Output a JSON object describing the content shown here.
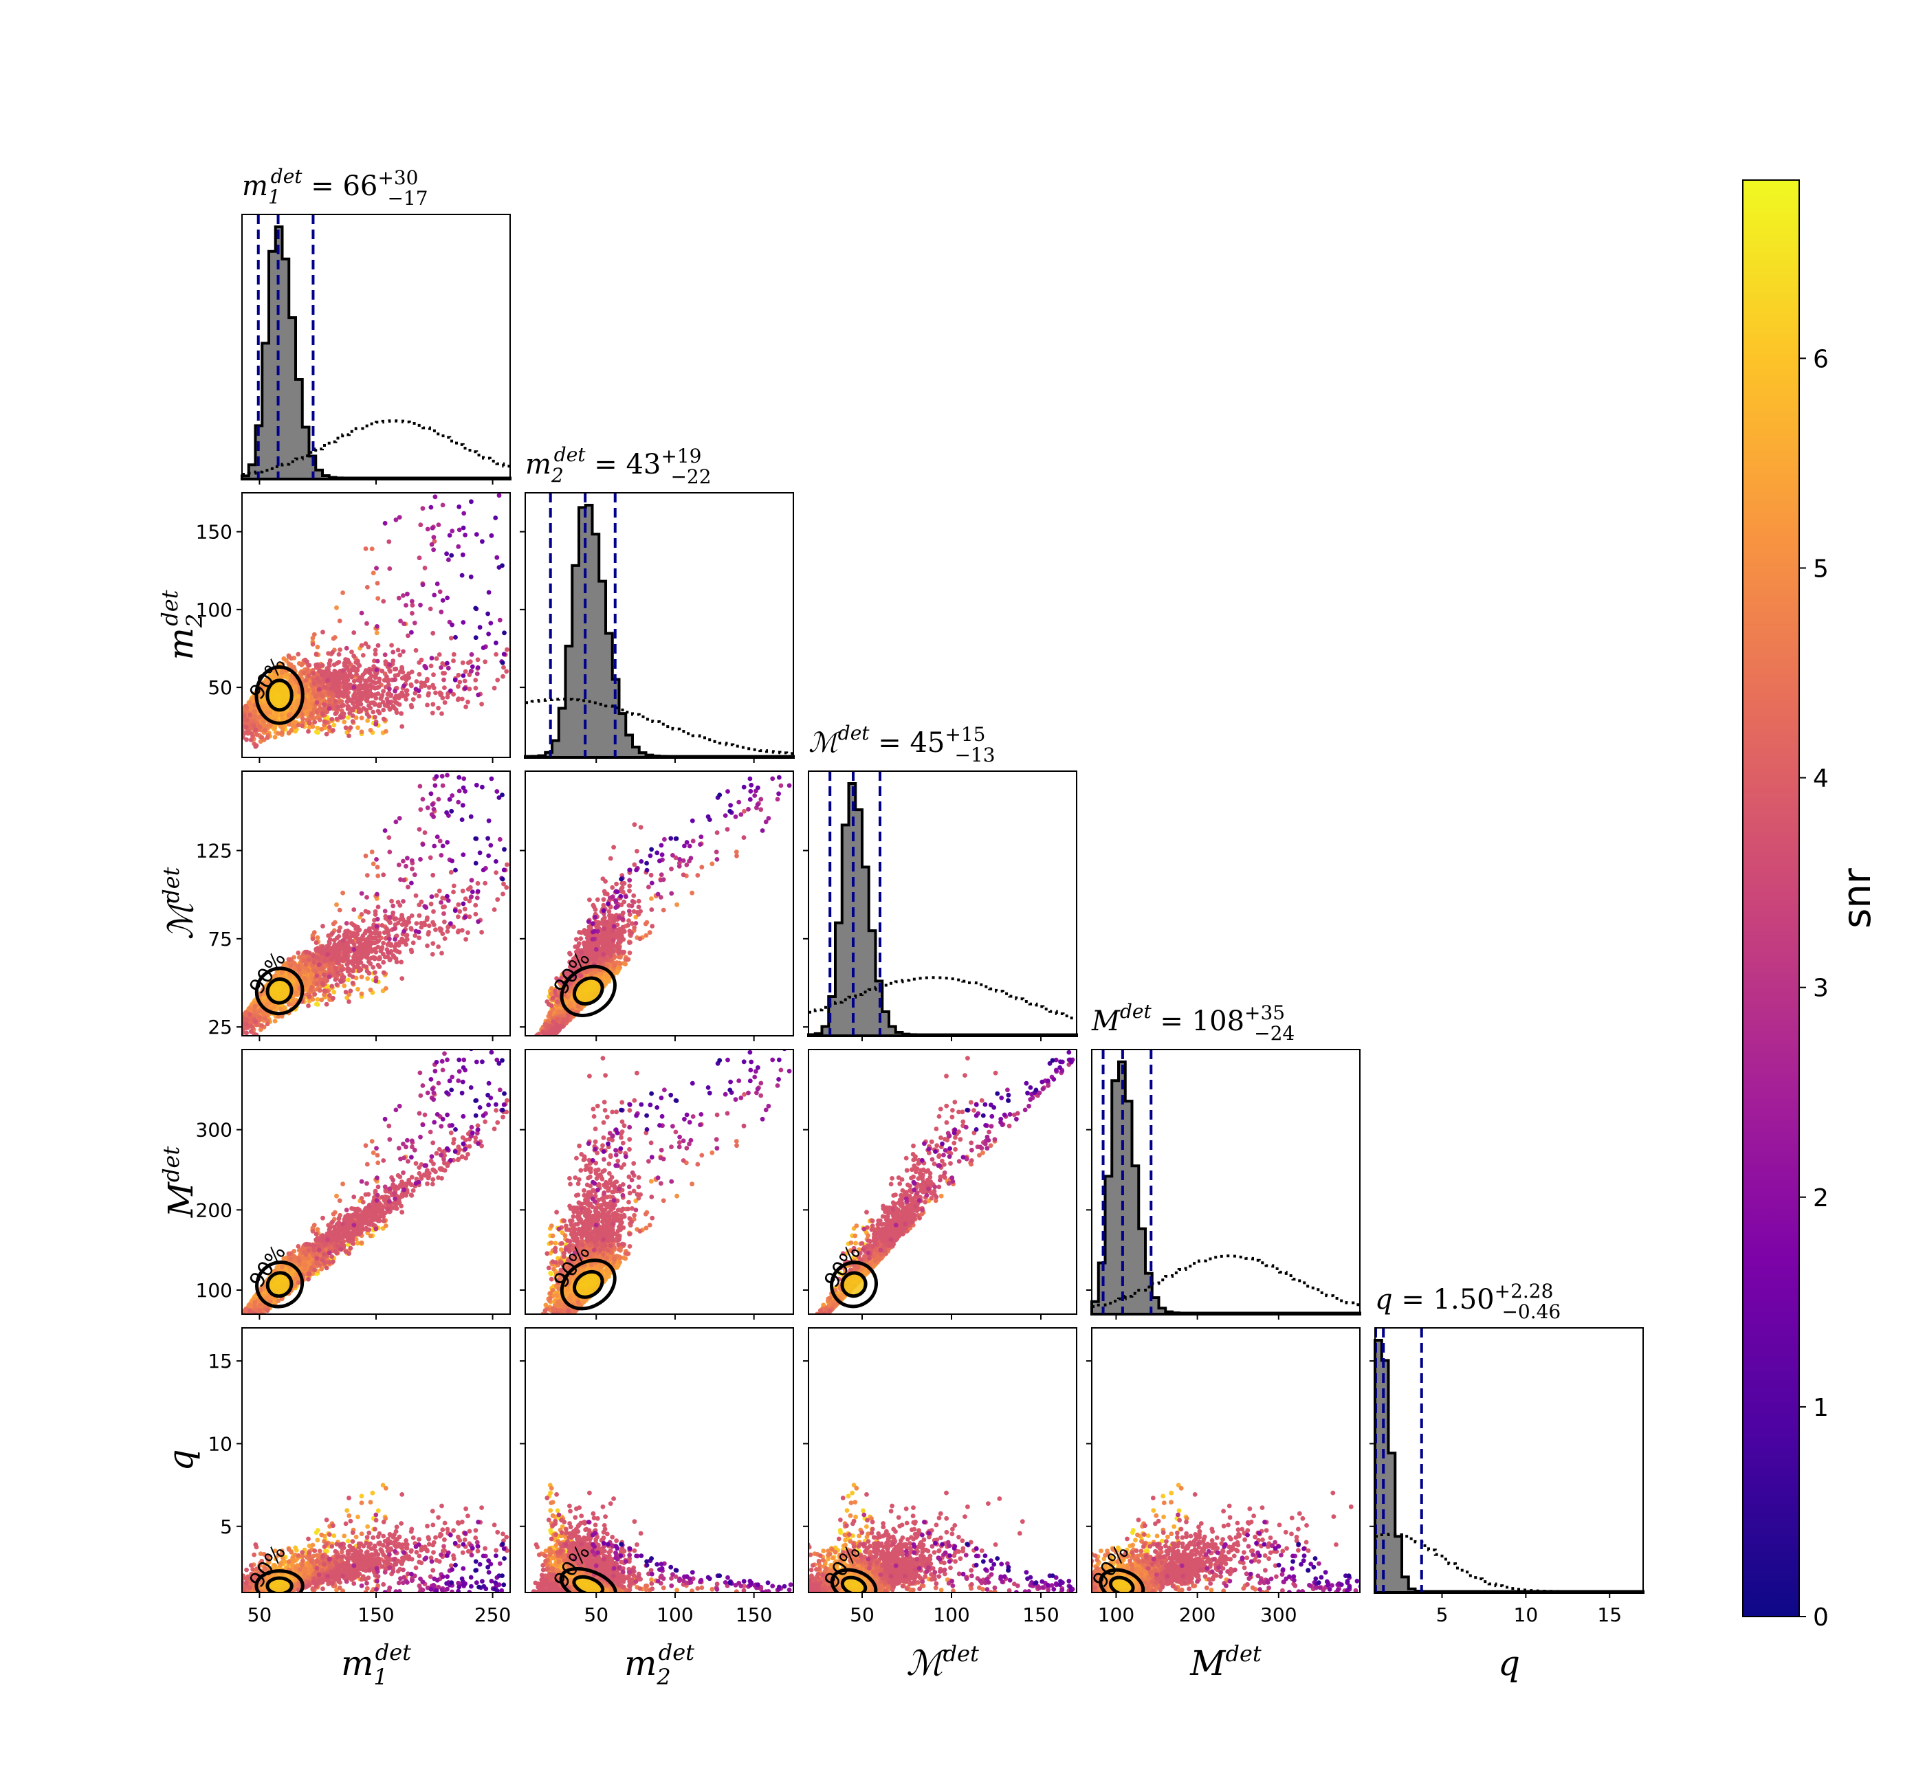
{
  "chart_data": {
    "type": "scatter",
    "subtype": "corner-plot",
    "parameters": [
      {
        "key": "m1",
        "label": "m",
        "sub": "1",
        "sup": "det",
        "range": [
          35,
          265
        ],
        "ticks": [
          50,
          150,
          250
        ],
        "title": {
          "sym": "m",
          "sub": "1",
          "sup": "det",
          "eq": " = 66",
          "plus": "+30",
          "minus": "−17"
        },
        "median": 66,
        "lo": 49,
        "hi": 96,
        "mode": 65,
        "spread": 11,
        "prior_center": 165,
        "prior_width": 55
      },
      {
        "key": "m2",
        "label": "m",
        "sub": "2",
        "sup": "det",
        "range": [
          5,
          175
        ],
        "ticks": [
          50,
          100,
          150
        ],
        "title": {
          "sym": "m",
          "sub": "2",
          "sup": "det",
          "eq": " = 43",
          "plus": "+19",
          "minus": "−22"
        },
        "median": 43,
        "lo": 21,
        "hi": 62,
        "mode": 43,
        "spread": 10,
        "prior_center": 28,
        "prior_width": 60
      },
      {
        "key": "Mc",
        "label": "ℳ",
        "sub": "",
        "sup": "det",
        "range": [
          20,
          170
        ],
        "ticks": [
          50,
          100,
          150
        ],
        "title": {
          "sym": "ℳ",
          "sub": "",
          "sup": "det",
          "eq": " = 45",
          "plus": "+15",
          "minus": "−13"
        },
        "median": 45,
        "lo": 32,
        "hi": 60,
        "mode": 44,
        "spread": 7,
        "prior_center": 90,
        "prior_width": 50
      },
      {
        "key": "M",
        "label": "M",
        "sub": "",
        "sup": "det",
        "range": [
          70,
          400
        ],
        "ticks": [
          100,
          200,
          300
        ],
        "title": {
          "sym": "M",
          "sub": "",
          "sup": "det",
          "eq": " = 108",
          "plus": "+35",
          "minus": "−24"
        },
        "median": 108,
        "lo": 84,
        "hi": 143,
        "mode": 104,
        "spread": 15,
        "prior_center": 240,
        "prior_width": 80
      },
      {
        "key": "q",
        "label": "q",
        "sub": "",
        "sup": "",
        "range": [
          1,
          17
        ],
        "ticks": [
          5,
          10,
          15
        ],
        "title": {
          "sym": "q",
          "sub": "",
          "sup": "",
          "eq": " = 1.50",
          "plus": "+2.28",
          "minus": "−0.46"
        },
        "median": 1.5,
        "lo": 1.04,
        "hi": 3.78,
        "mode": 1.3,
        "spread": 0.5,
        "prior_center": 2,
        "prior_width": 3
      }
    ],
    "row_tick_values": {
      "m2": [
        50,
        100,
        150
      ],
      "Mc": [
        25,
        75,
        125
      ],
      "M": [
        100,
        200,
        300
      ],
      "q": [
        5,
        10,
        15
      ]
    },
    "contour_label": "90%",
    "colorbar": {
      "label": "snr",
      "range": [
        0,
        6.85
      ],
      "ticks": [
        0,
        1,
        2,
        3,
        4,
        5,
        6
      ],
      "colormap": "plasma"
    },
    "colors": {
      "posterior_fill": "#808080",
      "posterior_edge": "#000000",
      "quantile_lines": "#00008b",
      "prior": "#000000",
      "contour": "#000000"
    }
  }
}
